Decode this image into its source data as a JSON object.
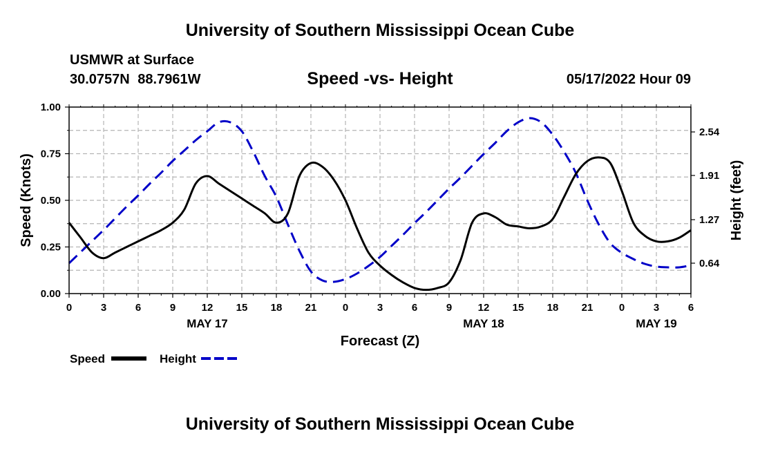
{
  "header": {
    "title": "University of Southern Mississippi Ocean Cube",
    "station": "USMWR at Surface",
    "coordinates": "30.0757N  88.7961W",
    "chart_title": "Speed -vs- Height",
    "datetime": "05/17/2022 Hour 09"
  },
  "footer": {
    "title": "University of Southern Mississippi Ocean Cube"
  },
  "colors": {
    "speed": "#000000",
    "height": "#0000c8",
    "grid": "#b4b4b4"
  },
  "chart_data": {
    "type": "line",
    "title": "Speed -vs- Height",
    "xlabel": "Forecast (Z)",
    "ylabel": "Speed (Knots)",
    "y2label": "Height (feet)",
    "xlim": [
      0,
      54
    ],
    "ylim": [
      0,
      1
    ],
    "y2lim": [
      0.2,
      2.9
    ],
    "grid": true,
    "legend_position": "bottom-left",
    "x_ticks": [
      0,
      3,
      6,
      9,
      12,
      15,
      18,
      21,
      24,
      27,
      30,
      33,
      36,
      39,
      42,
      45,
      48,
      51,
      54
    ],
    "x_tick_labels": [
      "0",
      "3",
      "6",
      "9",
      "12",
      "15",
      "18",
      "21",
      "0",
      "3",
      "6",
      "9",
      "12",
      "15",
      "18",
      "21",
      "0",
      "3",
      "6"
    ],
    "date_labels": [
      {
        "x": 12,
        "label": "MAY 17"
      },
      {
        "x": 36,
        "label": "MAY 18"
      },
      {
        "x": 51,
        "label": "MAY 19"
      }
    ],
    "y_ticks": [
      0,
      0.25,
      0.5,
      0.75,
      1.0
    ],
    "y_tick_labels": [
      "0.00",
      "0.25",
      "0.50",
      "0.75",
      "1.00"
    ],
    "y2_ticks": [
      0.64,
      1.27,
      1.91,
      2.54
    ],
    "y2_tick_labels": [
      "0.64",
      "1.27",
      "1.91",
      "2.54"
    ],
    "series": [
      {
        "name": "Speed",
        "axis": "left",
        "style": "solid",
        "x": [
          0,
          1,
          2,
          3,
          4,
          5,
          6,
          7,
          8,
          9,
          10,
          11,
          12,
          13,
          14,
          15,
          16,
          17,
          18,
          19,
          20,
          21,
          22,
          23,
          24,
          25,
          26,
          27,
          28,
          29,
          30,
          31,
          32,
          33,
          34,
          35,
          36,
          37,
          38,
          39,
          40,
          41,
          42,
          43,
          44,
          45,
          46,
          47,
          48,
          49,
          50,
          51,
          52,
          53,
          54
        ],
        "values": [
          0.38,
          0.3,
          0.22,
          0.19,
          0.22,
          0.25,
          0.28,
          0.31,
          0.34,
          0.38,
          0.45,
          0.59,
          0.63,
          0.59,
          0.55,
          0.51,
          0.47,
          0.43,
          0.38,
          0.43,
          0.63,
          0.7,
          0.68,
          0.61,
          0.5,
          0.35,
          0.22,
          0.15,
          0.1,
          0.06,
          0.03,
          0.02,
          0.03,
          0.06,
          0.18,
          0.38,
          0.43,
          0.41,
          0.37,
          0.36,
          0.35,
          0.36,
          0.4,
          0.52,
          0.64,
          0.71,
          0.73,
          0.7,
          0.55,
          0.38,
          0.31,
          0.28,
          0.28,
          0.3,
          0.34
        ]
      },
      {
        "name": "Height",
        "axis": "right",
        "style": "dashed",
        "x": [
          0,
          1,
          2,
          3,
          4,
          5,
          6,
          7,
          8,
          9,
          10,
          11,
          12,
          13,
          14,
          15,
          16,
          17,
          18,
          19,
          20,
          21,
          22,
          23,
          24,
          25,
          26,
          27,
          28,
          29,
          30,
          31,
          32,
          33,
          34,
          35,
          36,
          37,
          38,
          39,
          40,
          41,
          42,
          43,
          44,
          45,
          46,
          47,
          48,
          49,
          50,
          51,
          52,
          53,
          54
        ],
        "values": [
          0.64,
          0.8,
          0.96,
          1.12,
          1.29,
          1.46,
          1.62,
          1.79,
          1.95,
          2.12,
          2.27,
          2.42,
          2.55,
          2.68,
          2.68,
          2.55,
          2.25,
          1.9,
          1.6,
          1.2,
          0.82,
          0.52,
          0.39,
          0.37,
          0.41,
          0.49,
          0.6,
          0.73,
          0.89,
          1.05,
          1.22,
          1.38,
          1.55,
          1.72,
          1.88,
          2.05,
          2.22,
          2.38,
          2.55,
          2.68,
          2.74,
          2.68,
          2.5,
          2.25,
          1.95,
          1.55,
          1.2,
          0.93,
          0.79,
          0.7,
          0.63,
          0.59,
          0.58,
          0.58,
          0.61
        ]
      }
    ],
    "legend": [
      {
        "name": "Speed",
        "style": "solid"
      },
      {
        "name": "Height",
        "style": "dashed"
      }
    ]
  }
}
